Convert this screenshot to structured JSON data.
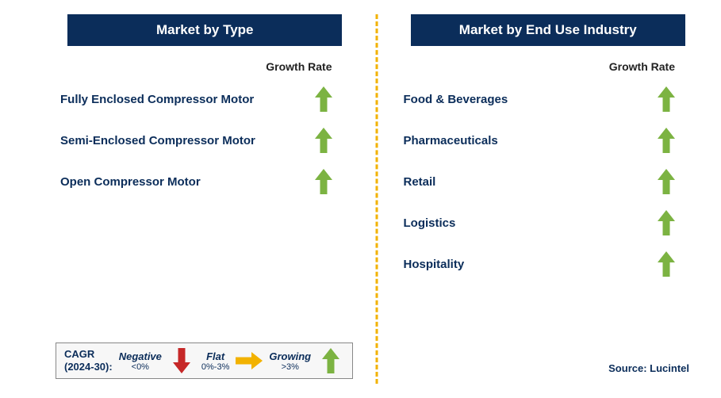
{
  "colors": {
    "header_bg": "#0b2d5a",
    "header_text": "#ffffff",
    "label_text": "#0b2d5a",
    "growth_label_text": "#222222",
    "divider_color": "#f2b200",
    "arrow_growing": "#7cb342",
    "arrow_flat": "#f2b200",
    "arrow_negative": "#c62828",
    "legend_text": "#0b2d5a",
    "source_text": "#0b2d5a",
    "background": "#ffffff"
  },
  "left": {
    "title": "Market by Type",
    "growth_label": "Growth Rate",
    "items": [
      {
        "label": "Fully Enclosed Compressor Motor",
        "trend": "growing"
      },
      {
        "label": "Semi-Enclosed Compressor Motor",
        "trend": "growing"
      },
      {
        "label": "Open Compressor Motor",
        "trend": "growing"
      }
    ]
  },
  "right": {
    "title": "Market by End Use Industry",
    "growth_label": "Growth Rate",
    "items": [
      {
        "label": "Food & Beverages",
        "trend": "growing"
      },
      {
        "label": "Pharmaceuticals",
        "trend": "growing"
      },
      {
        "label": "Retail",
        "trend": "growing"
      },
      {
        "label": "Logistics",
        "trend": "growing"
      },
      {
        "label": "Hospitality",
        "trend": "growing"
      }
    ]
  },
  "legend": {
    "title_line1": "CAGR",
    "title_line2": "(2024-30):",
    "negative_label": "Negative",
    "negative_sub": "<0%",
    "flat_label": "Flat",
    "flat_sub": "0%-3%",
    "growing_label": "Growing",
    "growing_sub": ">3%"
  },
  "source": "Source: Lucintel"
}
